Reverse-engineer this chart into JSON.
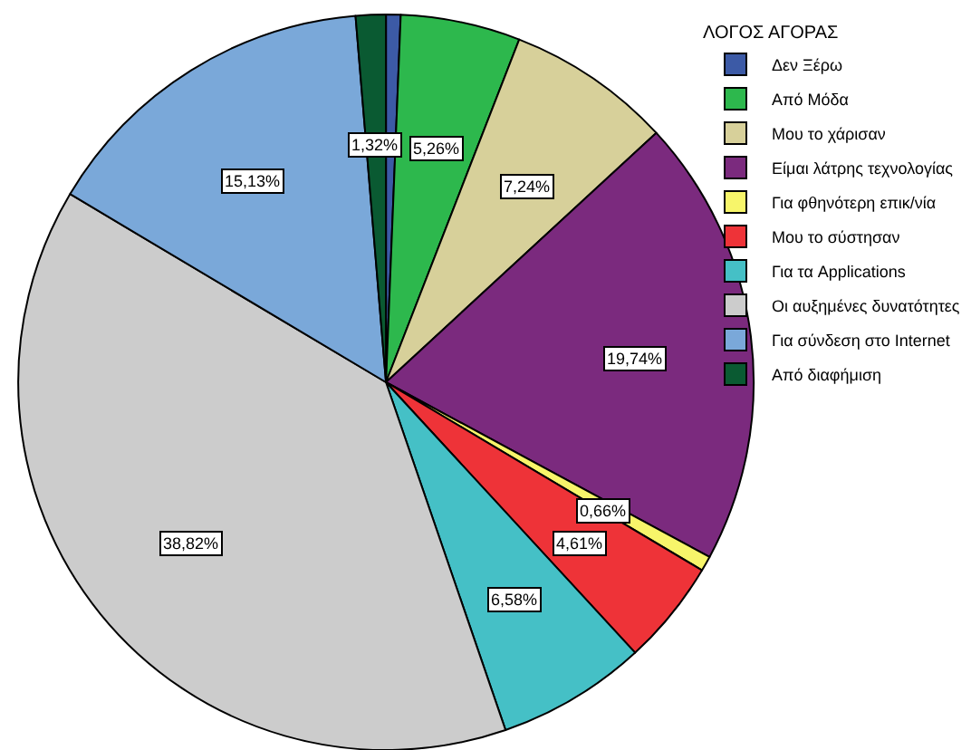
{
  "chart_data": {
    "type": "pie",
    "legend_title": "ΛΟΓΟΣ ΑΓΟΡΑΣ",
    "legend": "top right",
    "categories": [
      "Δεν Ξέρω",
      "Από Μόδα",
      "Μου το χάρισαν",
      "Είμαι λάτρης τεχνολογίας",
      "Για φθηνότερη επικ/νία",
      "Μου το σύστησαν",
      "Για τα Applications",
      "Οι αυξημένες δυνατότητες",
      "Για σύνδεση στο Internet",
      "Από διαφήμιση"
    ],
    "values": [
      0.64,
      5.26,
      7.24,
      19.74,
      0.66,
      4.61,
      6.58,
      38.82,
      15.13,
      1.32
    ],
    "value_labels": [
      null,
      "5,26%",
      "7,24%",
      "19,74%",
      "0,66%",
      "4,61%",
      "6,58%",
      "38,82%",
      "15,13%",
      "1,32%"
    ],
    "colors": [
      "#3c5aa6",
      "#2db84d",
      "#d7d09a",
      "#7b2a7e",
      "#f7f56a",
      "#ee3338",
      "#45c0c6",
      "#cccccc",
      "#7aa8d9",
      "#0a5a32"
    ]
  }
}
